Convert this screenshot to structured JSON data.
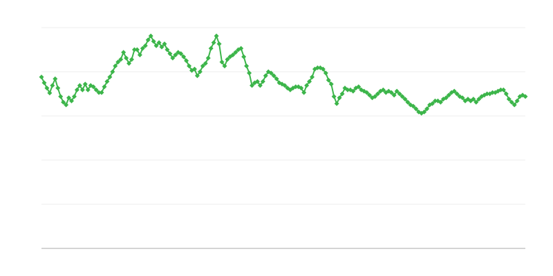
{
  "chart_data": {
    "type": "line",
    "marker": "diamond",
    "color": "#3cb54a",
    "grid": true,
    "show_tick_labels": false,
    "ylim": [
      0,
      5
    ],
    "yticks": [
      0,
      1,
      2,
      3,
      4,
      5
    ],
    "values": [
      3.88,
      3.75,
      3.63,
      3.52,
      3.69,
      3.84,
      3.63,
      3.44,
      3.31,
      3.25,
      3.41,
      3.34,
      3.44,
      3.59,
      3.69,
      3.59,
      3.72,
      3.59,
      3.69,
      3.66,
      3.59,
      3.53,
      3.53,
      3.66,
      3.78,
      3.88,
      4.0,
      4.13,
      4.22,
      4.28,
      4.44,
      4.31,
      4.19,
      4.28,
      4.5,
      4.5,
      4.38,
      4.53,
      4.59,
      4.72,
      4.81,
      4.69,
      4.59,
      4.66,
      4.56,
      4.63,
      4.5,
      4.41,
      4.31,
      4.38,
      4.44,
      4.41,
      4.34,
      4.25,
      4.13,
      4.03,
      4.06,
      3.91,
      4.0,
      4.13,
      4.19,
      4.31,
      4.53,
      4.66,
      4.81,
      4.63,
      4.22,
      4.13,
      4.28,
      4.34,
      4.38,
      4.44,
      4.5,
      4.53,
      4.34,
      4.13,
      3.97,
      3.69,
      3.75,
      3.78,
      3.69,
      3.78,
      3.91,
      4.0,
      3.97,
      3.91,
      3.84,
      3.75,
      3.72,
      3.69,
      3.63,
      3.59,
      3.63,
      3.66,
      3.66,
      3.63,
      3.53,
      3.69,
      3.78,
      3.88,
      4.06,
      4.09,
      4.09,
      4.06,
      3.97,
      3.81,
      3.72,
      3.44,
      3.28,
      3.41,
      3.5,
      3.63,
      3.59,
      3.59,
      3.56,
      3.63,
      3.66,
      3.59,
      3.56,
      3.53,
      3.47,
      3.41,
      3.44,
      3.5,
      3.56,
      3.59,
      3.53,
      3.56,
      3.53,
      3.47,
      3.56,
      3.5,
      3.44,
      3.38,
      3.31,
      3.25,
      3.22,
      3.16,
      3.09,
      3.06,
      3.09,
      3.16,
      3.25,
      3.28,
      3.34,
      3.34,
      3.31,
      3.38,
      3.41,
      3.47,
      3.53,
      3.56,
      3.5,
      3.44,
      3.41,
      3.34,
      3.38,
      3.34,
      3.38,
      3.31,
      3.38,
      3.44,
      3.47,
      3.5,
      3.5,
      3.53,
      3.53,
      3.56,
      3.59,
      3.59,
      3.5,
      3.38,
      3.31,
      3.25,
      3.34,
      3.44,
      3.47,
      3.44
    ]
  }
}
